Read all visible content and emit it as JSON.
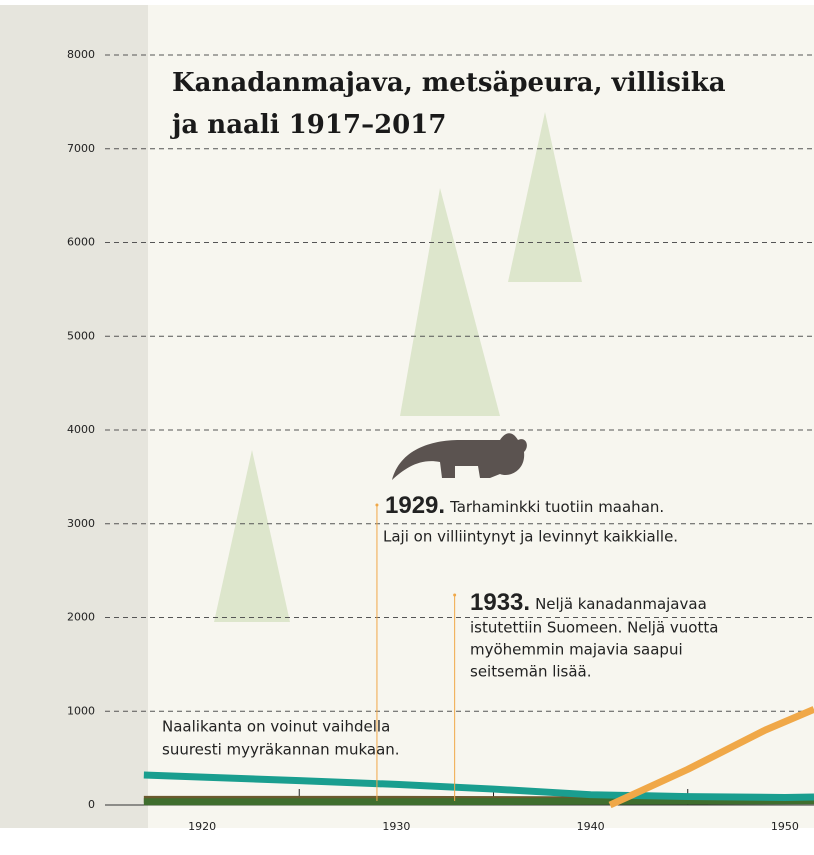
{
  "chart_data": {
    "type": "line",
    "title": [
      "Kanadanmajava, metsäpeura, villisika",
      "ja naali 1917–2017"
    ],
    "xlim": [
      1915,
      1951.5
    ],
    "xticks": [
      1920,
      1930,
      1940,
      1950
    ],
    "xminorticks": [
      1925,
      1935,
      1945
    ],
    "ylim": [
      0,
      8000
    ],
    "yticks": [
      0,
      1000,
      2000,
      3000,
      4000,
      5000,
      6000,
      7000,
      8000
    ],
    "grid": true,
    "series": [
      {
        "color": "#6b5a2e",
        "x": [
          1917,
          1930,
          1940,
          1951.5
        ],
        "values": [
          60,
          60,
          55,
          60
        ]
      },
      {
        "color": "#3f6e2e",
        "x": [
          1917,
          1930,
          1940,
          1951.5
        ],
        "values": [
          35,
          35,
          40,
          45
        ]
      },
      {
        "color": "#1a9e8f",
        "x": [
          1917,
          1925,
          1930,
          1935,
          1940,
          1945,
          1950,
          1951.5
        ],
        "values": [
          320,
          260,
          220,
          170,
          110,
          90,
          80,
          85
        ]
      },
      {
        "color": "#f0a848",
        "x": [
          1941,
          1945,
          1949,
          1951.5
        ],
        "values": [
          0,
          380,
          800,
          1020
        ]
      }
    ],
    "annotations": [
      {
        "x": {
          "value": 1929,
          "label": "1929."
        },
        "y": 3200,
        "lines": [
          "Tarhaminkki tuotiin maahan.",
          "Laji on villiintynyt ja levinnyt kaikkialle."
        ]
      },
      {
        "x": {
          "value": 1933,
          "label": "1933."
        },
        "y": 2240,
        "lines": [
          "Neljä kanadanmajavaa",
          "istutettiin Suomeen. Neljä vuotta",
          "myöhemmin majavia saapui",
          "seitsemän lisää."
        ]
      }
    ],
    "note": [
      "Naalikanta on voinut vaihdella",
      "suuresti myyräkannan mukaan."
    ]
  }
}
